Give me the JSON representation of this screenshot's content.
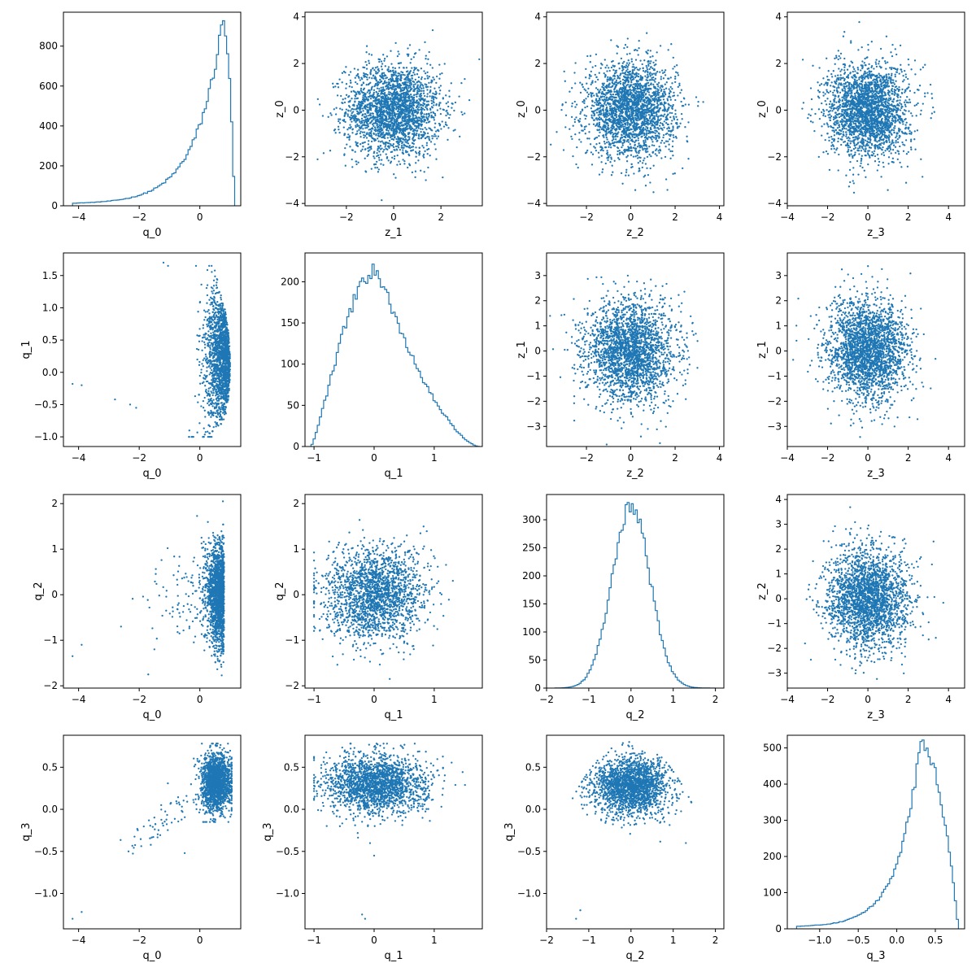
{
  "chart_data": {
    "type": "pair_plot",
    "color": "#1f77b4",
    "grid": false,
    "cells": [
      {
        "row": 0,
        "col": 0,
        "type": "hist",
        "xlabel": "q_0",
        "xlim": [
          -4.5,
          1.35
        ],
        "ylim": [
          0,
          970
        ],
        "xticks": [
          -4,
          -2,
          0
        ],
        "yticks": [
          0,
          200,
          400,
          600,
          800
        ],
        "dist": "skew",
        "params": {
          "min": -4.2,
          "mode": 0.75,
          "max": 1.15,
          "peak": 930
        }
      },
      {
        "row": 0,
        "col": 1,
        "type": "scatter",
        "xlabel": "z_1",
        "ylabel": "z_0",
        "xlim": [
          -3.75,
          3.75
        ],
        "ylim": [
          -4.1,
          4.2
        ],
        "xticks": [
          -2,
          0,
          2
        ],
        "yticks": [
          -4,
          -2,
          0,
          2,
          4
        ],
        "dist": "normal",
        "params": {
          "sx": 1,
          "sy": 1
        }
      },
      {
        "row": 0,
        "col": 2,
        "type": "scatter",
        "xlabel": "z_2",
        "ylabel": "z_0",
        "xlim": [
          -3.8,
          4.2
        ],
        "ylim": [
          -4.1,
          4.2
        ],
        "xticks": [
          -2,
          0,
          2,
          4
        ],
        "yticks": [
          -4,
          -2,
          0,
          2,
          4
        ],
        "dist": "normal",
        "params": {
          "sx": 1,
          "sy": 1
        }
      },
      {
        "row": 0,
        "col": 3,
        "type": "scatter",
        "xlabel": "z_3",
        "ylabel": "z_0",
        "xlim": [
          -4.0,
          4.8
        ],
        "ylim": [
          -4.1,
          4.2
        ],
        "xticks": [
          -4,
          -2,
          0,
          2,
          4
        ],
        "yticks": [
          -4,
          -2,
          0,
          2,
          4
        ],
        "dist": "normal",
        "params": {
          "sx": 1,
          "sy": 1
        }
      },
      {
        "row": 1,
        "col": 0,
        "type": "scatter",
        "xlabel": "q_0",
        "ylabel": "q_1",
        "xlim": [
          -4.5,
          1.35
        ],
        "ylim": [
          -1.15,
          1.85
        ],
        "xticks": [
          -4,
          -2,
          0
        ],
        "yticks": [
          -1.0,
          -0.5,
          0.0,
          0.5,
          1.0,
          1.5
        ],
        "dist": "crescent",
        "params": {}
      },
      {
        "row": 1,
        "col": 1,
        "type": "hist",
        "xlabel": "q_1",
        "xlim": [
          -1.15,
          1.8
        ],
        "ylim": [
          0,
          235
        ],
        "xticks": [
          -1,
          0,
          1
        ],
        "yticks": [
          0,
          50,
          100,
          150,
          200
        ],
        "dist": "bump",
        "params": {
          "min": -1.05,
          "mode": 0.05,
          "max": 1.75,
          "peak": 215
        }
      },
      {
        "row": 1,
        "col": 2,
        "type": "scatter",
        "xlabel": "z_2",
        "ylabel": "z_1",
        "xlim": [
          -3.8,
          4.2
        ],
        "ylim": [
          -3.8,
          3.9
        ],
        "xticks": [
          -2,
          0,
          2,
          4
        ],
        "yticks": [
          -3,
          -2,
          -1,
          0,
          1,
          2,
          3
        ],
        "dist": "normal",
        "params": {
          "sx": 1,
          "sy": 1
        }
      },
      {
        "row": 1,
        "col": 3,
        "type": "scatter",
        "xlabel": "z_3",
        "ylabel": "z_1",
        "xlim": [
          -4.0,
          4.8
        ],
        "ylim": [
          -3.8,
          3.9
        ],
        "xticks": [
          -4,
          -2,
          0,
          2,
          4
        ],
        "yticks": [
          -3,
          -2,
          -1,
          0,
          1,
          2,
          3
        ],
        "dist": "normal",
        "params": {
          "sx": 1,
          "sy": 1
        }
      },
      {
        "row": 2,
        "col": 0,
        "type": "scatter",
        "xlabel": "q_0",
        "ylabel": "q_2",
        "xlim": [
          -4.5,
          1.35
        ],
        "ylim": [
          -2.05,
          2.2
        ],
        "xticks": [
          -4,
          -2,
          0
        ],
        "yticks": [
          -2,
          -1,
          0,
          1,
          2
        ],
        "dist": "q0q2",
        "params": {}
      },
      {
        "row": 2,
        "col": 1,
        "type": "scatter",
        "xlabel": "q_1",
        "ylabel": "q_2",
        "xlim": [
          -1.15,
          1.8
        ],
        "ylim": [
          -2.05,
          2.2
        ],
        "xticks": [
          -1,
          0,
          1
        ],
        "yticks": [
          -2,
          -1,
          0,
          1,
          2
        ],
        "dist": "q1q2",
        "params": {}
      },
      {
        "row": 2,
        "col": 2,
        "type": "hist",
        "xlabel": "q_2",
        "xlim": [
          -2.0,
          2.2
        ],
        "ylim": [
          0,
          345
        ],
        "xticks": [
          -2,
          -1,
          0,
          1,
          2
        ],
        "yticks": [
          0,
          50,
          100,
          150,
          200,
          250,
          300
        ],
        "dist": "gauss",
        "params": {
          "min": -1.8,
          "mode": 0.0,
          "max": 2.0,
          "peak": 325,
          "sd": 0.45
        }
      },
      {
        "row": 2,
        "col": 3,
        "type": "scatter",
        "xlabel": "z_3",
        "ylabel": "z_2",
        "xlim": [
          -4.0,
          4.8
        ],
        "ylim": [
          -3.6,
          4.2
        ],
        "xticks": [
          -4,
          -2,
          0,
          2,
          4
        ],
        "yticks": [
          -3,
          -2,
          -1,
          0,
          1,
          2,
          3,
          4
        ],
        "dist": "normal",
        "params": {
          "sx": 1,
          "sy": 1
        }
      },
      {
        "row": 3,
        "col": 0,
        "type": "scatter",
        "xlabel": "q_0",
        "ylabel": "q_3",
        "xlim": [
          -4.5,
          1.35
        ],
        "ylim": [
          -1.42,
          0.88
        ],
        "xticks": [
          -4,
          -2,
          0
        ],
        "yticks": [
          -1.0,
          -0.5,
          0.0,
          0.5
        ],
        "dist": "q0q3",
        "params": {}
      },
      {
        "row": 3,
        "col": 1,
        "type": "scatter",
        "xlabel": "q_1",
        "ylabel": "q_3",
        "xlim": [
          -1.15,
          1.8
        ],
        "ylim": [
          -1.42,
          0.88
        ],
        "xticks": [
          -1,
          0,
          1
        ],
        "yticks": [
          -1.0,
          -0.5,
          0.0,
          0.5
        ],
        "dist": "q1q3",
        "params": {}
      },
      {
        "row": 3,
        "col": 2,
        "type": "scatter",
        "xlabel": "q_2",
        "ylabel": "q_3",
        "xlim": [
          -2.0,
          2.2
        ],
        "ylim": [
          -1.42,
          0.88
        ],
        "xticks": [
          -2,
          -1,
          0,
          1,
          2
        ],
        "yticks": [
          -1.0,
          -0.5,
          0.0,
          0.5
        ],
        "dist": "q2q3",
        "params": {}
      },
      {
        "row": 3,
        "col": 3,
        "type": "hist",
        "xlabel": "q_3",
        "xlim": [
          -1.42,
          0.88
        ],
        "ylim": [
          0,
          535
        ],
        "xticks": [
          -1.0,
          -0.5,
          0.0,
          0.5
        ],
        "yticks": [
          0,
          100,
          200,
          300,
          400,
          500
        ],
        "dist": "skew",
        "params": {
          "min": -1.3,
          "mode": 0.3,
          "max": 0.8,
          "peak": 505
        }
      }
    ]
  }
}
